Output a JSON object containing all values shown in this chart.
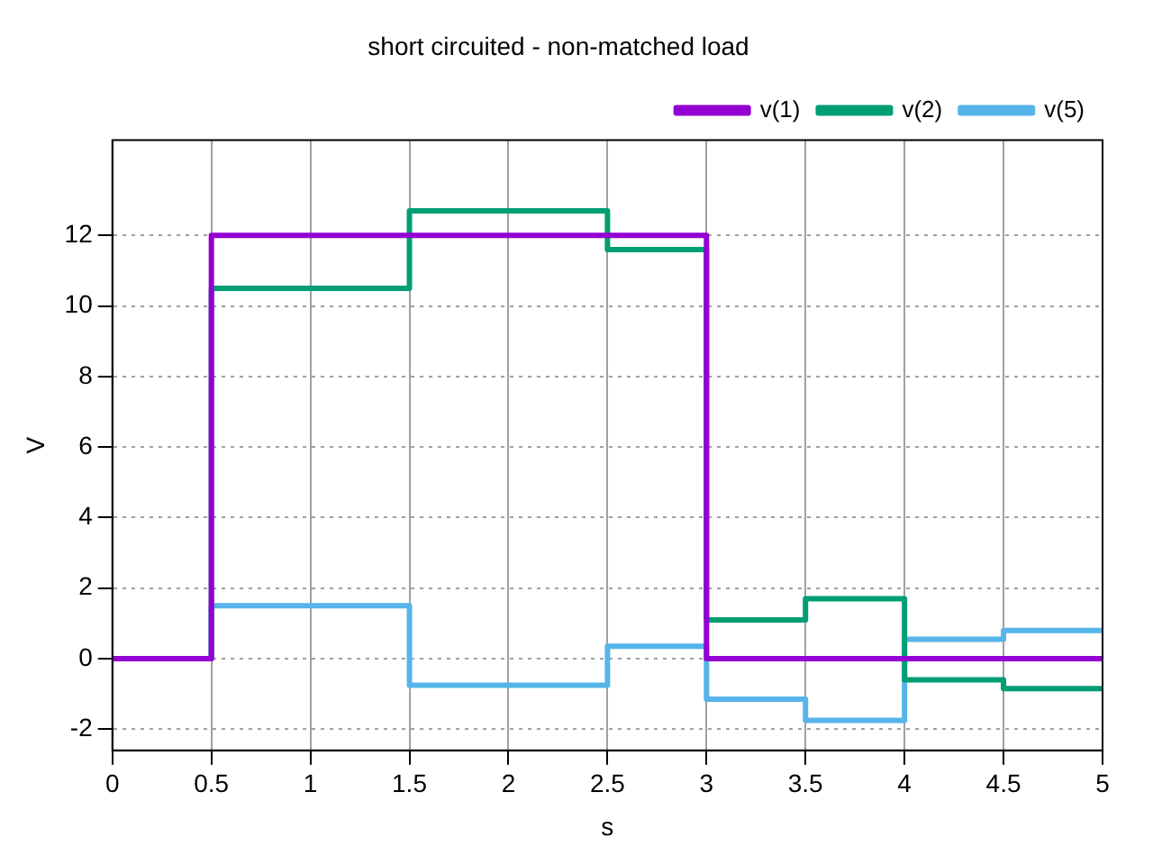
{
  "chart_data": {
    "type": "step",
    "title": "short circuited - non-matched load",
    "xlabel": "s",
    "ylabel": "V",
    "x": [
      0,
      0.5,
      1.5,
      2.5,
      3,
      3.5,
      4,
      4.5,
      5
    ],
    "series": [
      {
        "name": "v(1)",
        "color": "#9400d3",
        "values": [
          0,
          12,
          12,
          12,
          0,
          0,
          0,
          0,
          0
        ]
      },
      {
        "name": "v(2)",
        "color": "#009e73",
        "values": [
          0,
          10.5,
          12.7,
          11.6,
          1.1,
          1.7,
          -0.6,
          -0.85,
          -0.85
        ]
      },
      {
        "name": "v(5)",
        "color": "#56b4e9",
        "values": [
          0,
          1.5,
          -0.75,
          0.35,
          -1.15,
          -1.75,
          0.55,
          0.8,
          0.8
        ]
      }
    ],
    "xlim": [
      0,
      5
    ],
    "xticks": [
      0,
      0.5,
      1,
      1.5,
      2,
      2.5,
      3,
      3.5,
      4,
      4.5,
      5
    ],
    "ylim": [
      -2.6,
      14.7
    ],
    "yticks": [
      -2,
      0,
      2,
      4,
      6,
      8,
      10,
      12
    ],
    "grid": true,
    "legend": "top right",
    "marker": "none",
    "line_style": "solid"
  }
}
